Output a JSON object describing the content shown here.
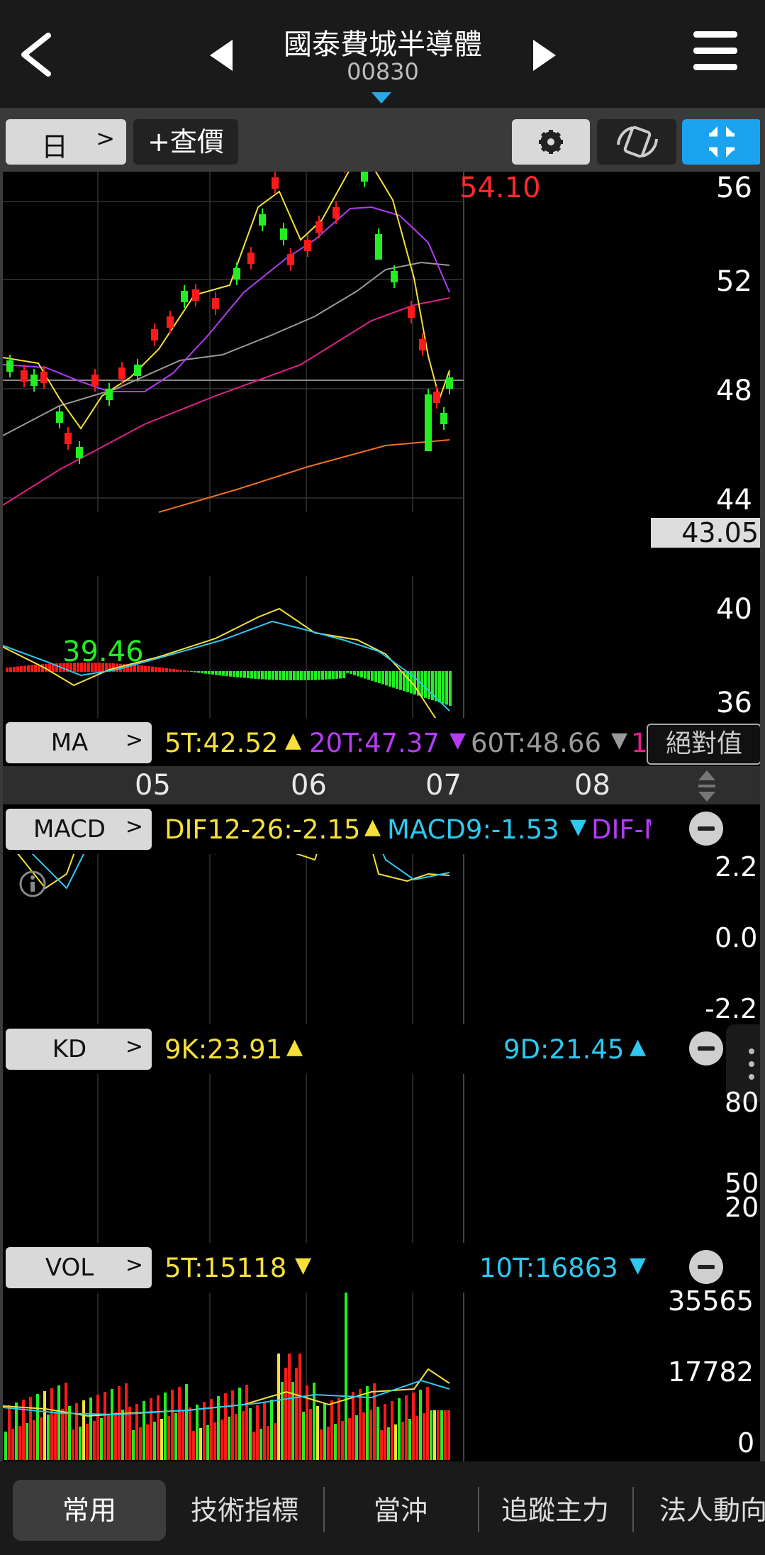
{
  "header": {
    "title": "國泰費城半導體",
    "code": "00830"
  },
  "toolbar": {
    "period_label": "日",
    "quote_label": "+查價"
  },
  "main_chart": {
    "price_axis_labels": [
      "56",
      "52",
      "48",
      "44",
      "40",
      "36"
    ],
    "high_label": "54.10",
    "low_label": "39.46",
    "last_price": "43.05",
    "indicator_label": "MA",
    "legend": {
      "ma5": "5T:42.52",
      "ma20": "20T:47.37",
      "ma60": "60T:48.66",
      "clipped": "1"
    },
    "abs_value_label": "絕對值",
    "months": [
      "05",
      "06",
      "07",
      "08"
    ],
    "colors": {
      "ma5": "#f5e03a",
      "ma20": "#b43cf2",
      "ma60": "#9a9a9a",
      "ma120": "#e0208c",
      "ma240": "#f07020",
      "up": "#ff1a1a",
      "down": "#22ee22",
      "high": "#ff2a2a",
      "low": "#22ee22"
    }
  },
  "macd": {
    "indicator_label": "MACD",
    "dif": "DIF12-26:-2.15",
    "macd9": "MACD9:-1.53",
    "diff_clipped": "DIF-M",
    "axis_labels": [
      "2.2",
      "0.0",
      "-2.2"
    ],
    "colors": {
      "dif": "#f5e03a",
      "macd": "#2ec8f0",
      "osc_pos": "#ff1a1a",
      "osc_neg": "#22ee22"
    }
  },
  "kd": {
    "indicator_label": "KD",
    "k": "9K:23.91",
    "d": "9D:21.45",
    "axis_labels": [
      "80",
      "50",
      "20"
    ]
  },
  "vol": {
    "indicator_label": "VOL",
    "ma5": "5T:15118",
    "ma10": "10T:16863",
    "axis_labels": [
      "35565",
      "17782",
      "0"
    ]
  },
  "bottom_nav": {
    "tabs": [
      "常用",
      "技術指標",
      "當沖",
      "追蹤主力",
      "法人動向"
    ]
  }
}
